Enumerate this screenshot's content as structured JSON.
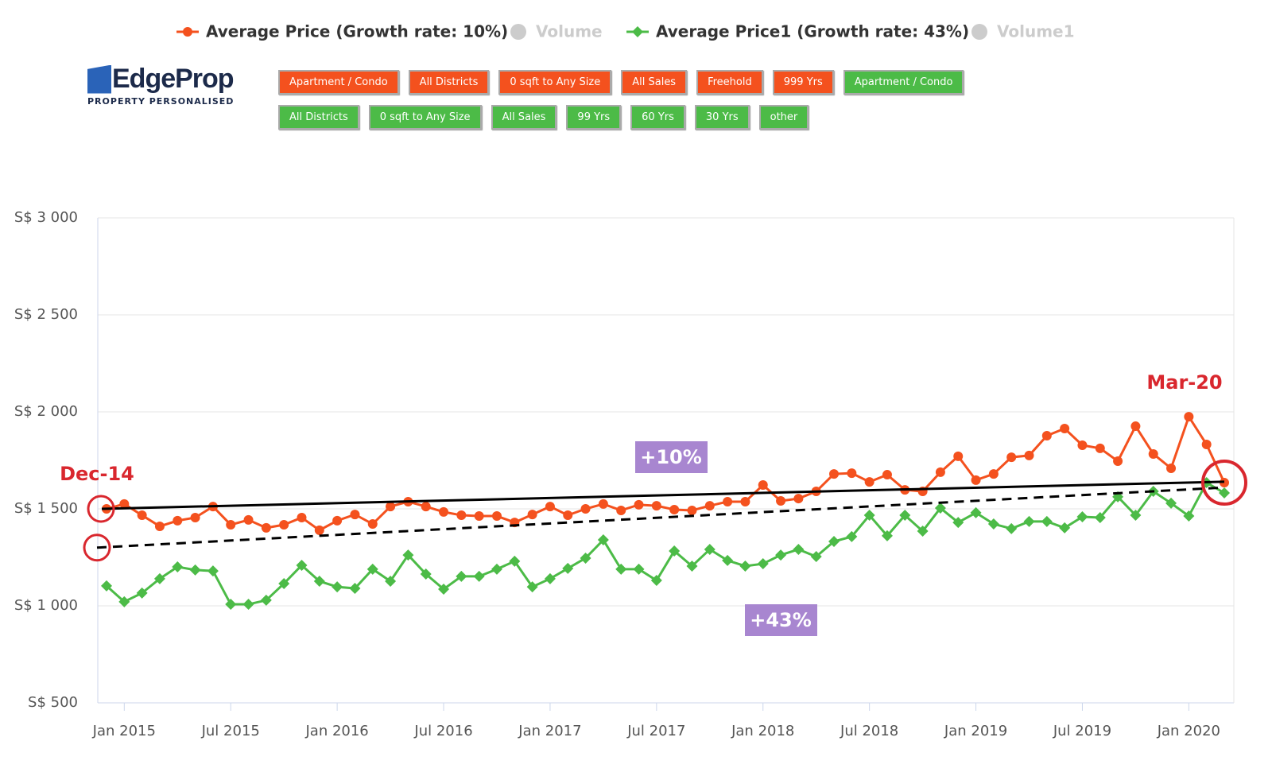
{
  "logo": {
    "name": "EdgeProp",
    "tagline": "PROPERTY PERSONALISED"
  },
  "filters": [
    [
      {
        "label": "Apartment / Condo",
        "color": "#f4511e"
      },
      {
        "label": "All Districts",
        "color": "#f4511e"
      },
      {
        "label": "0 sqft to Any Size",
        "color": "#f4511e"
      },
      {
        "label": "All Sales",
        "color": "#f4511e"
      },
      {
        "label": "Freehold",
        "color": "#f4511e"
      },
      {
        "label": "999 Yrs",
        "color": "#f4511e"
      },
      {
        "label": "Apartment / Condo",
        "color": "#4cbb47"
      }
    ],
    [
      {
        "label": "All Districts",
        "color": "#4cbb47"
      },
      {
        "label": "0 sqft to Any Size",
        "color": "#4cbb47"
      },
      {
        "label": "All Sales",
        "color": "#4cbb47"
      },
      {
        "label": "99 Yrs",
        "color": "#4cbb47"
      },
      {
        "label": "60 Yrs",
        "color": "#4cbb47"
      },
      {
        "label": "30 Yrs",
        "color": "#4cbb47"
      },
      {
        "label": "other",
        "color": "#4cbb47"
      }
    ]
  ],
  "chart_data": {
    "type": "line",
    "legend": [
      {
        "name": "Average Price (Growth rate: 10%)",
        "color": "#f4511e",
        "visible": true
      },
      {
        "name": "Volume",
        "color": "#cccccc",
        "visible": false
      },
      {
        "name": "Average Price1 (Growth rate: 43%)",
        "color": "#4cbb47",
        "visible": true
      },
      {
        "name": "Volume1",
        "color": "#cccccc",
        "visible": false
      }
    ],
    "x": [
      "2014-12",
      "2015-01",
      "2015-02",
      "2015-03",
      "2015-04",
      "2015-05",
      "2015-06",
      "2015-07",
      "2015-08",
      "2015-09",
      "2015-10",
      "2015-11",
      "2015-12",
      "2016-01",
      "2016-02",
      "2016-03",
      "2016-04",
      "2016-05",
      "2016-06",
      "2016-07",
      "2016-08",
      "2016-09",
      "2016-10",
      "2016-11",
      "2016-12",
      "2017-01",
      "2017-02",
      "2017-03",
      "2017-04",
      "2017-05",
      "2017-06",
      "2017-07",
      "2017-08",
      "2017-09",
      "2017-10",
      "2017-11",
      "2017-12",
      "2018-01",
      "2018-02",
      "2018-03",
      "2018-04",
      "2018-05",
      "2018-06",
      "2018-07",
      "2018-08",
      "2018-09",
      "2018-10",
      "2018-11",
      "2018-12",
      "2019-01",
      "2019-02",
      "2019-03",
      "2019-04",
      "2019-05",
      "2019-06",
      "2019-07",
      "2019-08",
      "2019-09",
      "2019-10",
      "2019-11",
      "2019-12",
      "2020-01",
      "2020-02",
      "2020-03"
    ],
    "series": [
      {
        "name": "Average Price (Growth rate: 10%)",
        "color": "#f4511e",
        "marker": "circle",
        "values": [
          1500,
          1525,
          1467,
          1410,
          1439,
          1455,
          1512,
          1418,
          1443,
          1402,
          1418,
          1455,
          1390,
          1439,
          1471,
          1422,
          1512,
          1537,
          1512,
          1484,
          1467,
          1463,
          1463,
          1430,
          1471,
          1512,
          1467,
          1500,
          1525,
          1492,
          1521,
          1516,
          1496,
          1492,
          1516,
          1537,
          1537,
          1623,
          1541,
          1553,
          1590,
          1680,
          1684,
          1639,
          1676,
          1598,
          1590,
          1689,
          1771,
          1648,
          1680,
          1766,
          1775,
          1877,
          1914,
          1828,
          1812,
          1746,
          1926,
          1783,
          1709,
          1975,
          1832,
          1635
        ]
      },
      {
        "name": "Average Price1 (Growth rate: 43%)",
        "color": "#4cbb47",
        "marker": "diamond",
        "values": [
          1103,
          1021,
          1066,
          1140,
          1201,
          1185,
          1180,
          1008,
          1008,
          1029,
          1115,
          1209,
          1127,
          1098,
          1090,
          1189,
          1127,
          1262,
          1164,
          1086,
          1152,
          1152,
          1189,
          1230,
          1098,
          1140,
          1193,
          1246,
          1340,
          1189,
          1189,
          1131,
          1283,
          1205,
          1291,
          1234,
          1205,
          1217,
          1262,
          1291,
          1254,
          1332,
          1357,
          1467,
          1361,
          1467,
          1385,
          1504,
          1430,
          1480,
          1422,
          1398,
          1435,
          1435,
          1402,
          1459,
          1455,
          1562,
          1467,
          1590,
          1529,
          1463,
          1635,
          1582
        ]
      }
    ],
    "trend_lines": [
      {
        "start": 1500,
        "end": 1640,
        "dashed": false
      },
      {
        "start": 1300,
        "end": 1610,
        "dashed": true
      }
    ],
    "ylim": [
      500,
      3000
    ],
    "yticks": [
      {
        "value": 500,
        "label": "S$ 500"
      },
      {
        "value": 1000,
        "label": "S$ 1 000"
      },
      {
        "value": 1500,
        "label": "S$ 1 500"
      },
      {
        "value": 2000,
        "label": "S$ 2 000"
      },
      {
        "value": 2500,
        "label": "S$ 2 500"
      },
      {
        "value": 3000,
        "label": "S$ 3 000"
      }
    ],
    "xticks": [
      {
        "value": "2015-01",
        "label": "Jan 2015"
      },
      {
        "value": "2015-07",
        "label": "Jul 2015"
      },
      {
        "value": "2016-01",
        "label": "Jan 2016"
      },
      {
        "value": "2016-07",
        "label": "Jul 2016"
      },
      {
        "value": "2017-01",
        "label": "Jan 2017"
      },
      {
        "value": "2017-07",
        "label": "Jul 2017"
      },
      {
        "value": "2018-01",
        "label": "Jan 2018"
      },
      {
        "value": "2018-07",
        "label": "Jul 2018"
      },
      {
        "value": "2019-01",
        "label": "Jan 2019"
      },
      {
        "value": "2019-07",
        "label": "Jul 2019"
      },
      {
        "value": "2020-01",
        "label": "Jan 2020"
      }
    ],
    "grid": true,
    "annotations": {
      "start": "Dec-14",
      "end": "Mar-20",
      "growth1": "+10%",
      "growth2": "+43%"
    }
  }
}
